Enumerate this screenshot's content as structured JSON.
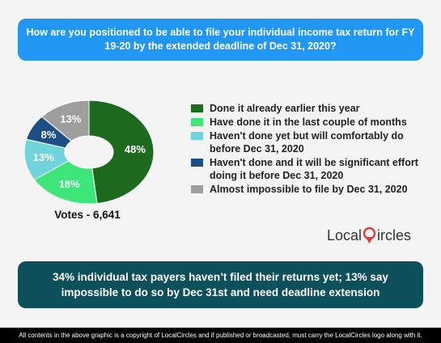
{
  "header": {
    "question": "How are you positioned to be able to file your individual income tax return for FY 19-20 by the extended deadline of Dec 31, 2020?"
  },
  "chart_data": {
    "type": "pie",
    "categories": [
      "Done it already earlier this year",
      "Have done it in the last couple of months",
      "Haven't done yet but will comfortably do before Dec 31, 2020",
      "Haven't done and it will be significant effort doing it before Dec 31, 2020",
      "Almost impossible to file by Dec 31, 2020"
    ],
    "values": [
      48,
      18,
      13,
      8,
      13
    ],
    "labels": [
      "48%",
      "18%",
      "13%",
      "8%",
      "13%"
    ],
    "colors": [
      "#1e6a1e",
      "#3ee67a",
      "#6fd4dc",
      "#1c4f86",
      "#9e9e9e"
    ],
    "legend_position": "right"
  },
  "votes": "Votes - 6,641",
  "logo": {
    "text_before": "Local",
    "text_after": "ircles"
  },
  "summary": "34% individual tax payers haven’t filed their returns yet; 13% say impossible to do so by Dec 31st and need deadline extension",
  "copyright": "All contents in the above graphic is a copyright of LocalCircles and if published or broadcasted, must carry the LocalCircles logo along with it.",
  "colors": {
    "title_bg": "#2196f3",
    "summary_bg": "#0e4f5c",
    "logo_accent": "#e53935"
  }
}
